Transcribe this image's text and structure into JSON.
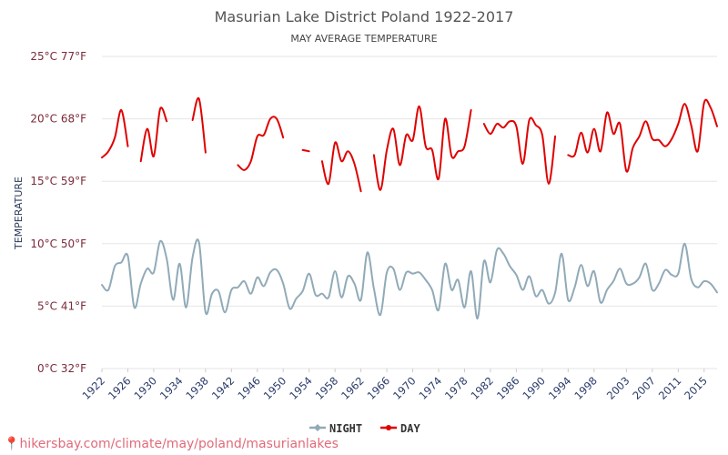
{
  "chart_data": {
    "type": "line",
    "title": "Masurian Lake District Poland 1922-2017",
    "subtitle": "MAY AVERAGE TEMPERATURE",
    "ylabel": "TEMPERATURE",
    "ylim": [
      0,
      25
    ],
    "y_ticks": [
      {
        "value": 0,
        "label": "0°C 32°F"
      },
      {
        "value": 5,
        "label": "5°C 41°F"
      },
      {
        "value": 10,
        "label": "10°C 50°F"
      },
      {
        "value": 15,
        "label": "15°C 59°F"
      },
      {
        "value": 20,
        "label": "20°C 68°F"
      },
      {
        "value": 25,
        "label": "25°C 77°F"
      }
    ],
    "x_range": [
      1922,
      2017
    ],
    "x_ticks": [
      1922,
      1926,
      1930,
      1934,
      1938,
      1942,
      1946,
      1950,
      1954,
      1958,
      1962,
      1966,
      1970,
      1974,
      1978,
      1982,
      1986,
      1990,
      1994,
      1998,
      2003,
      2007,
      2011,
      2015
    ],
    "grid": true,
    "legend_position": "bottom",
    "series": [
      {
        "name": "NIGHT",
        "color": "#90aab8",
        "values": [
          [
            1922,
            6.7
          ],
          [
            1923,
            6.3
          ],
          [
            1924,
            8.2
          ],
          [
            1925,
            8.5
          ],
          [
            1926,
            9.0
          ],
          [
            1927,
            4.9
          ],
          [
            1928,
            6.8
          ],
          [
            1929,
            8.0
          ],
          [
            1930,
            7.7
          ],
          [
            1931,
            10.2
          ],
          [
            1932,
            8.8
          ],
          [
            1933,
            5.5
          ],
          [
            1934,
            8.4
          ],
          [
            1935,
            4.9
          ],
          [
            1936,
            8.9
          ],
          [
            1937,
            10.1
          ],
          [
            1938,
            4.5
          ],
          [
            1939,
            6.0
          ],
          [
            1940,
            6.2
          ],
          [
            1941,
            4.5
          ],
          [
            1942,
            6.3
          ],
          [
            1943,
            6.5
          ],
          [
            1944,
            7.0
          ],
          [
            1945,
            6.0
          ],
          [
            1946,
            7.3
          ],
          [
            1947,
            6.6
          ],
          [
            1948,
            7.7
          ],
          [
            1949,
            7.9
          ],
          [
            1950,
            6.8
          ],
          [
            1951,
            4.8
          ],
          [
            1952,
            5.6
          ],
          [
            1953,
            6.2
          ],
          [
            1954,
            7.6
          ],
          [
            1955,
            5.9
          ],
          [
            1956,
            6.0
          ],
          [
            1957,
            5.7
          ],
          [
            1958,
            7.8
          ],
          [
            1959,
            5.7
          ],
          [
            1960,
            7.4
          ],
          [
            1961,
            6.8
          ],
          [
            1962,
            5.5
          ],
          [
            1963,
            9.3
          ],
          [
            1964,
            6.4
          ],
          [
            1965,
            4.3
          ],
          [
            1966,
            7.7
          ],
          [
            1967,
            8.0
          ],
          [
            1968,
            6.3
          ],
          [
            1969,
            7.7
          ],
          [
            1970,
            7.6
          ],
          [
            1971,
            7.7
          ],
          [
            1972,
            7.1
          ],
          [
            1973,
            6.3
          ],
          [
            1974,
            4.7
          ],
          [
            1975,
            8.4
          ],
          [
            1976,
            6.3
          ],
          [
            1977,
            7.1
          ],
          [
            1978,
            4.9
          ],
          [
            1979,
            7.8
          ],
          [
            1980,
            4.0
          ],
          [
            1981,
            8.6
          ],
          [
            1982,
            6.9
          ],
          [
            1983,
            9.5
          ],
          [
            1984,
            9.2
          ],
          [
            1985,
            8.2
          ],
          [
            1986,
            7.5
          ],
          [
            1987,
            6.3
          ],
          [
            1988,
            7.4
          ],
          [
            1989,
            5.8
          ],
          [
            1990,
            6.3
          ],
          [
            1991,
            5.2
          ],
          [
            1992,
            6.1
          ],
          [
            1993,
            9.2
          ],
          [
            1994,
            5.5
          ],
          [
            1995,
            6.5
          ],
          [
            1996,
            8.3
          ],
          [
            1997,
            6.6
          ],
          [
            1998,
            7.8
          ],
          [
            1999,
            5.3
          ],
          [
            2000,
            6.3
          ],
          [
            2001,
            7.0
          ],
          [
            2002,
            8.0
          ],
          [
            2003,
            6.8
          ],
          [
            2004,
            6.8
          ],
          [
            2005,
            7.3
          ],
          [
            2006,
            8.4
          ],
          [
            2007,
            6.3
          ],
          [
            2008,
            6.8
          ],
          [
            2009,
            7.9
          ],
          [
            2010,
            7.5
          ],
          [
            2011,
            7.6
          ],
          [
            2012,
            10.0
          ],
          [
            2013,
            7.2
          ],
          [
            2014,
            6.5
          ],
          [
            2015,
            7.0
          ],
          [
            2016,
            6.8
          ],
          [
            2017,
            6.1
          ]
        ]
      },
      {
        "name": "DAY",
        "color": "#e00000",
        "values": [
          [
            1922,
            16.9
          ],
          [
            1923,
            17.4
          ],
          [
            1924,
            18.5
          ],
          [
            1925,
            20.7
          ],
          [
            1926,
            17.8
          ],
          [
            1927,
            null
          ],
          [
            1928,
            16.6
          ],
          [
            1929,
            19.2
          ],
          [
            1930,
            17.0
          ],
          [
            1931,
            20.8
          ],
          [
            1932,
            19.8
          ],
          [
            1933,
            null
          ],
          [
            1934,
            null
          ],
          [
            1935,
            null
          ],
          [
            1936,
            19.9
          ],
          [
            1937,
            21.6
          ],
          [
            1938,
            17.3
          ],
          [
            1939,
            null
          ],
          [
            1940,
            null
          ],
          [
            1941,
            null
          ],
          [
            1942,
            null
          ],
          [
            1943,
            16.3
          ],
          [
            1944,
            15.9
          ],
          [
            1945,
            16.6
          ],
          [
            1946,
            18.6
          ],
          [
            1947,
            18.7
          ],
          [
            1948,
            20.0
          ],
          [
            1949,
            20.0
          ],
          [
            1950,
            18.5
          ],
          [
            1951,
            null
          ],
          [
            1952,
            null
          ],
          [
            1953,
            17.5
          ],
          [
            1954,
            17.4
          ],
          [
            1955,
            null
          ],
          [
            1956,
            16.6
          ],
          [
            1957,
            14.8
          ],
          [
            1958,
            18.1
          ],
          [
            1959,
            16.6
          ],
          [
            1960,
            17.4
          ],
          [
            1961,
            16.4
          ],
          [
            1962,
            14.2
          ],
          [
            1963,
            null
          ],
          [
            1964,
            17.1
          ],
          [
            1965,
            14.3
          ],
          [
            1966,
            17.5
          ],
          [
            1967,
            19.2
          ],
          [
            1968,
            16.3
          ],
          [
            1969,
            18.7
          ],
          [
            1970,
            18.3
          ],
          [
            1971,
            21.0
          ],
          [
            1972,
            17.8
          ],
          [
            1973,
            17.5
          ],
          [
            1974,
            15.2
          ],
          [
            1975,
            20.0
          ],
          [
            1976,
            17.0
          ],
          [
            1977,
            17.4
          ],
          [
            1978,
            17.8
          ],
          [
            1979,
            20.7
          ],
          [
            1980,
            null
          ],
          [
            1981,
            19.6
          ],
          [
            1982,
            18.8
          ],
          [
            1983,
            19.6
          ],
          [
            1984,
            19.3
          ],
          [
            1985,
            19.8
          ],
          [
            1986,
            19.4
          ],
          [
            1987,
            16.4
          ],
          [
            1988,
            19.9
          ],
          [
            1989,
            19.5
          ],
          [
            1990,
            18.7
          ],
          [
            1991,
            14.8
          ],
          [
            1992,
            18.6
          ],
          [
            1993,
            null
          ],
          [
            1994,
            17.1
          ],
          [
            1995,
            17.1
          ],
          [
            1996,
            18.9
          ],
          [
            1997,
            17.3
          ],
          [
            1998,
            19.2
          ],
          [
            1999,
            17.4
          ],
          [
            2000,
            20.5
          ],
          [
            2001,
            18.8
          ],
          [
            2002,
            19.6
          ],
          [
            2003,
            15.8
          ],
          [
            2004,
            17.7
          ],
          [
            2005,
            18.6
          ],
          [
            2006,
            19.8
          ],
          [
            2007,
            18.4
          ],
          [
            2008,
            18.3
          ],
          [
            2009,
            17.8
          ],
          [
            2010,
            18.4
          ],
          [
            2011,
            19.6
          ],
          [
            2012,
            21.2
          ],
          [
            2013,
            19.5
          ],
          [
            2014,
            17.4
          ],
          [
            2015,
            21.3
          ],
          [
            2016,
            20.9
          ],
          [
            2017,
            19.4
          ]
        ]
      }
    ]
  },
  "watermark": "hikersbay.com/climate/may/poland/masurianlakes"
}
